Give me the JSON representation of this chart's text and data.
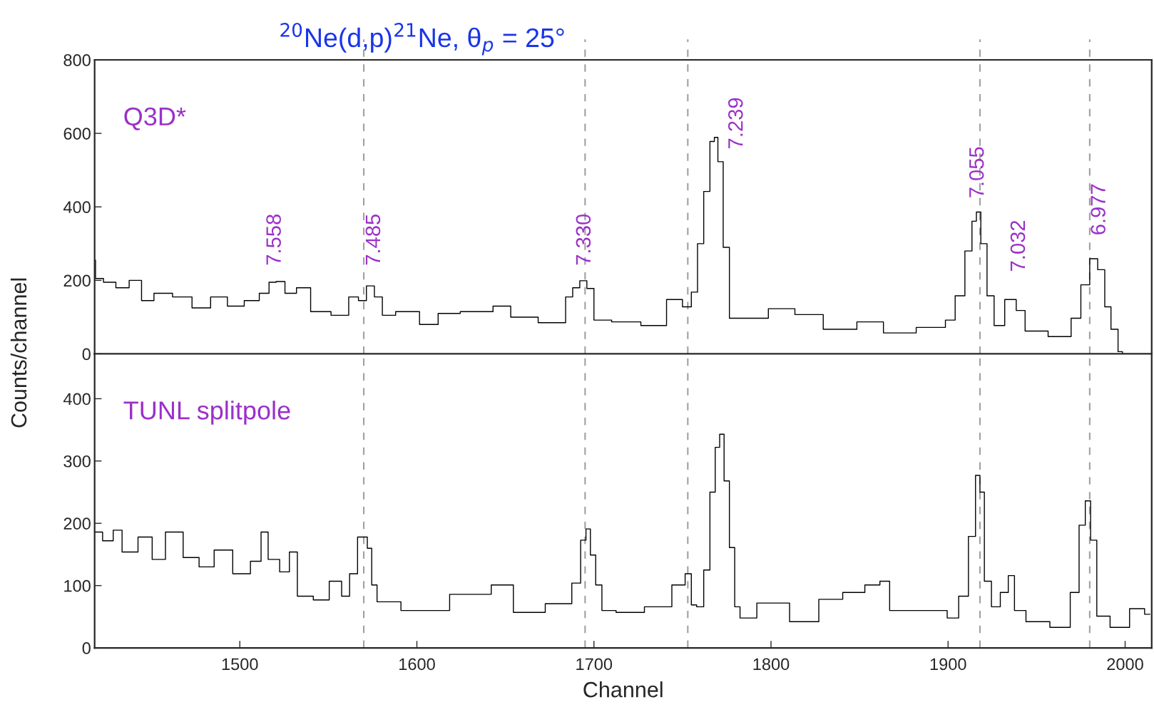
{
  "chart_data": [
    {
      "type": "step",
      "title": "$^{20}$Ne(d,p)$^{21}$Ne, θ$_{p}$ = 25°",
      "ylabel": "Counts/channel",
      "xlim": [
        1418,
        2015
      ],
      "ylim": [
        0,
        800
      ],
      "yticks": [
        0,
        200,
        400,
        600,
        800
      ],
      "tick_labels": "y",
      "grid": false,
      "legend": false,
      "annotations": [
        "Q3D*",
        "7.558",
        "7.485",
        "7.330",
        "7.239",
        "7.055",
        "7.032",
        "6.977"
      ],
      "ref_lines": [
        {
          "axis": "x",
          "value": 1570,
          "color": "#a0a0a0",
          "line_style": "dashed"
        },
        {
          "axis": "x",
          "value": 1695,
          "color": "#a0a0a0",
          "line_style": "dashed"
        },
        {
          "axis": "x",
          "value": 1753,
          "color": "#a0a0a0",
          "line_style": "dashed"
        },
        {
          "axis": "x",
          "value": 1918,
          "color": "#a0a0a0",
          "line_style": "dashed"
        },
        {
          "axis": "x",
          "value": 1980,
          "color": "#a0a0a0",
          "line_style": "dashed"
        }
      ],
      "series": [
        {
          "color": "#000000",
          "x": [
            1418,
            1419,
            1427,
            1433,
            1442,
            1447,
            1456,
            1468,
            1478,
            1489,
            1497,
            1508,
            1514,
            1519,
            1522,
            1529,
            1535,
            1545,
            1558,
            1565,
            1569,
            1574,
            1578,
            1583,
            1593,
            1610,
            1614,
            1635,
            1651,
            1655,
            1682,
            1686,
            1690,
            1694,
            1698,
            1702,
            1718,
            1735,
            1747,
            1753,
            1757,
            1760,
            1764,
            1767,
            1769,
            1771,
            1775,
            1778,
            1791,
            1806,
            1821,
            1838,
            1859,
            1868,
            1896,
            1901,
            1907,
            1912,
            1915,
            1917,
            1920,
            1924,
            1928,
            1936,
            1941,
            1946,
            1967,
            1972,
            1978,
            1982,
            1987,
            1990,
            1994,
            1998,
            1999
          ],
          "values": [
            255,
            205,
            195,
            180,
            200,
            145,
            165,
            155,
            125,
            155,
            130,
            145,
            165,
            195,
            197,
            165,
            180,
            115,
            105,
            155,
            145,
            185,
            155,
            105,
            115,
            80,
            110,
            115,
            130,
            100,
            85,
            155,
            180,
            199,
            178,
            92,
            87,
            77,
            148,
            128,
            168,
            300,
            442,
            578,
            589,
            523,
            290,
            97,
            97,
            123,
            107,
            67,
            87,
            57,
            72,
            92,
            158,
            280,
            361,
            386,
            300,
            158,
            77,
            148,
            118,
            62,
            47,
            97,
            188,
            259,
            229,
            128,
            67,
            6,
            0
          ]
        }
      ]
    },
    {
      "type": "step",
      "xlabel": "Channel",
      "xlim": [
        1418,
        2015
      ],
      "xticks": [
        1500,
        1600,
        1700,
        1800,
        1900,
        2000
      ],
      "ylim": [
        0,
        472
      ],
      "yticks": [
        0,
        100,
        200,
        300,
        400
      ],
      "grid": false,
      "legend": false,
      "annotations": [
        "TUNL splitpole"
      ],
      "ref_lines": [
        {
          "axis": "x",
          "value": 1570,
          "color": "#a0a0a0",
          "line_style": "dashed"
        },
        {
          "axis": "x",
          "value": 1695,
          "color": "#a0a0a0",
          "line_style": "dashed"
        },
        {
          "axis": "x",
          "value": 1753,
          "color": "#a0a0a0",
          "line_style": "dashed"
        },
        {
          "axis": "x",
          "value": 1918,
          "color": "#a0a0a0",
          "line_style": "dashed"
        },
        {
          "axis": "x",
          "value": 1980,
          "color": "#a0a0a0",
          "line_style": "dashed"
        }
      ],
      "series": [
        {
          "color": "#000000",
          "x": [
            1418,
            1427,
            1430,
            1437,
            1448,
            1453,
            1463,
            1473,
            1481,
            1490,
            1502,
            1510,
            1514,
            1518,
            1527,
            1529,
            1536,
            1547,
            1554,
            1561,
            1563,
            1570,
            1574,
            1575,
            1580,
            1602,
            1635,
            1649,
            1660,
            1685,
            1690,
            1695,
            1696,
            1700,
            1702,
            1707,
            1718,
            1739,
            1749,
            1754,
            1756,
            1760,
            1764,
            1767,
            1770,
            1772,
            1775,
            1778,
            1781,
            1784,
            1800,
            1821,
            1833,
            1848,
            1858,
            1865,
            1869,
            1896,
            1903,
            1909,
            1914,
            1917,
            1919,
            1922,
            1927,
            1932,
            1936,
            1939,
            1949,
            1966,
            1972,
            1976,
            1979,
            1982,
            1986,
            1997,
            2008,
            2014
          ],
          "values": [
            186,
            172,
            189,
            154,
            178,
            142,
            186,
            145,
            130,
            157,
            119,
            139,
            186,
            142,
            122,
            154,
            83,
            77,
            107,
            83,
            119,
            178,
            160,
            101,
            74,
            60,
            86,
            101,
            57,
            71,
            104,
            173,
            191,
            149,
            101,
            60,
            57,
            66,
            101,
            119,
            69,
            66,
            125,
            250,
            322,
            343,
            268,
            161,
            66,
            48,
            72,
            42,
            78,
            89,
            101,
            107,
            60,
            60,
            48,
            83,
            179,
            277,
            250,
            107,
            66,
            89,
            116,
            60,
            42,
            33,
            89,
            197,
            236,
            173,
            51,
            33,
            63,
            54
          ]
        }
      ]
    }
  ]
}
